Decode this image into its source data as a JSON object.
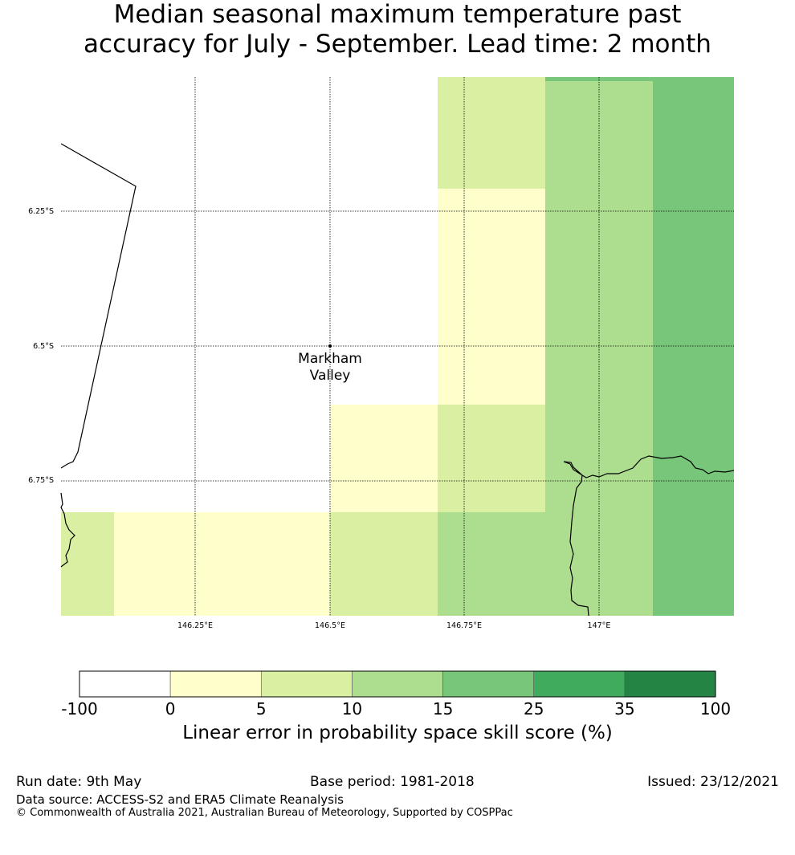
{
  "title": {
    "line1": "Median seasonal maximum temperature past",
    "line2": "accuracy for July - September. Lead time: 2 month"
  },
  "map": {
    "lat_labels": [
      "6.25°S",
      "6.5°S",
      "6.75°S"
    ],
    "lon_labels": [
      "146.25°E",
      "146.5°E",
      "146.75°E",
      "147°E"
    ],
    "place": {
      "name_line1": "Markham",
      "name_line2": "Valley"
    },
    "gridlines": true
  },
  "colorbar": {
    "tick_labels": [
      "-100",
      "0",
      "5",
      "10",
      "15",
      "25",
      "35",
      "100"
    ],
    "colors": [
      "#ffffff",
      "#ffffcc",
      "#d9f0a3",
      "#addd8e",
      "#78c679",
      "#41ab5d",
      "#238443"
    ],
    "label": "Linear error in probability space skill score (%)"
  },
  "footer": {
    "run_date": "Run date: 9th May",
    "base_period": "Base period: 1981-2018",
    "issued": "Issued: 23/12/2021",
    "data_source": "Data source: ACCESS-S2 and ERA5 Climate Reanalysis",
    "copyright": "© Commonwealth of Australia 2021, Australian Bureau of Meteorology, Supported by COSPPac"
  }
}
